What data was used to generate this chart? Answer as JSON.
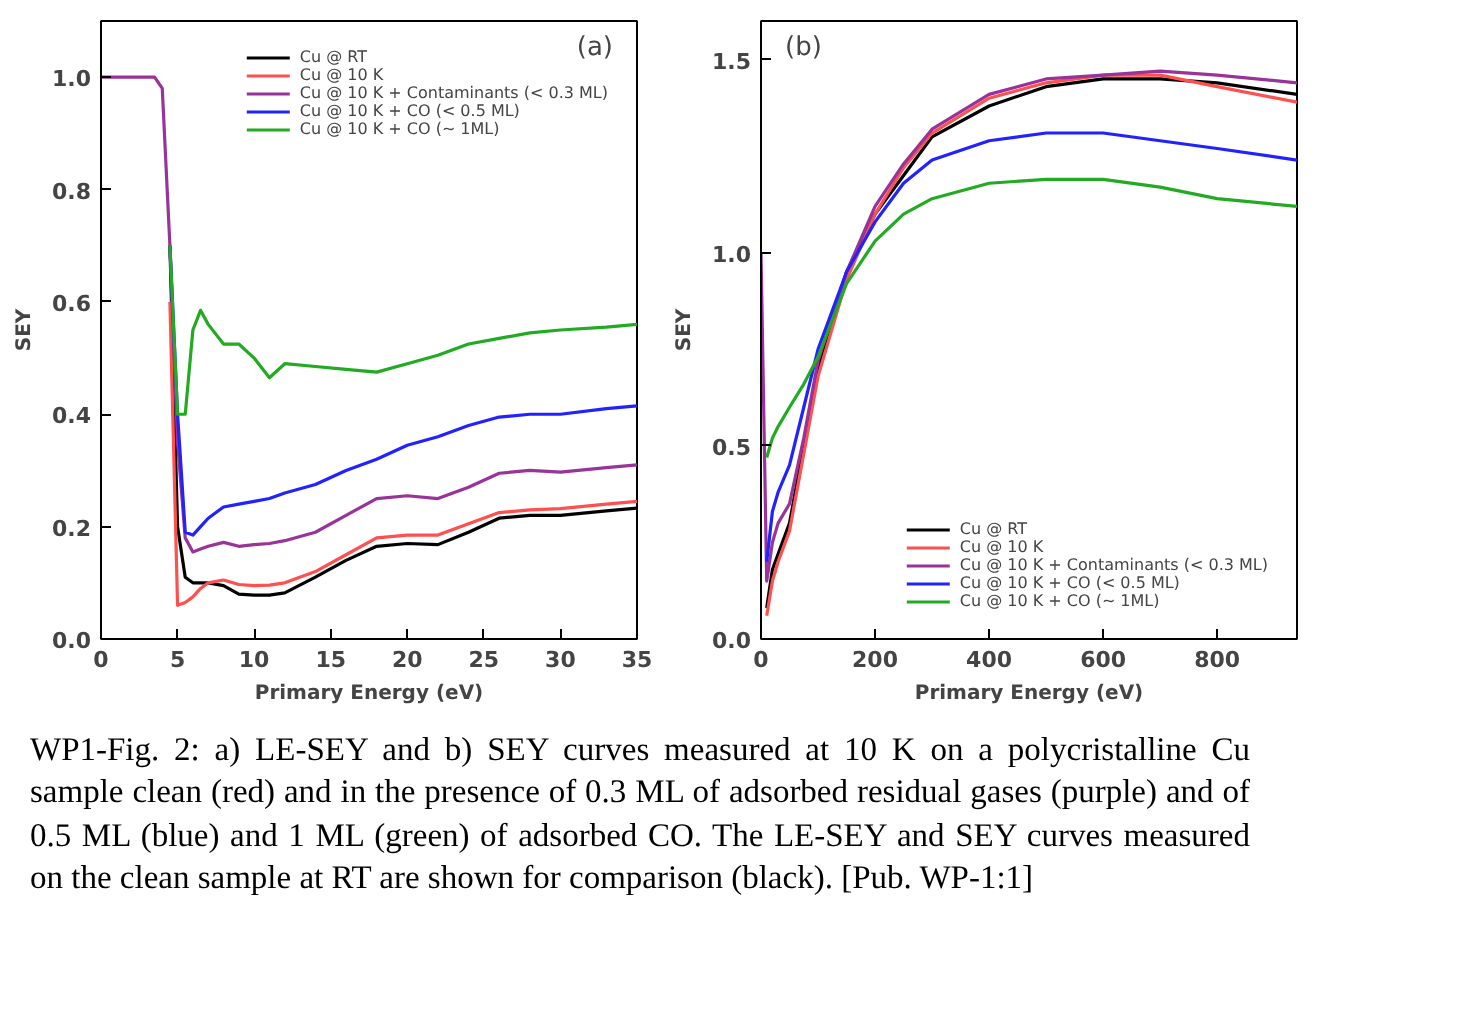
{
  "chart_data": [
    {
      "type": "line",
      "title": "(a)",
      "xlabel": "Primary Energy (eV)",
      "ylabel": "SEY",
      "xlim": [
        0,
        35
      ],
      "ylim": [
        0,
        1.1
      ],
      "xticks": [
        0,
        5,
        10,
        15,
        20,
        25,
        30,
        35
      ],
      "yticks": [
        {
          "value": 0,
          "label": "0.0"
        },
        {
          "value": 0.2,
          "label": "0.2"
        },
        {
          "value": 0.4,
          "label": "0.4"
        },
        {
          "value": 0.6,
          "label": "0.6"
        },
        {
          "value": 0.8,
          "label": "0.8"
        },
        {
          "value": 1,
          "label": "1.0"
        }
      ],
      "grid": false,
      "legend": "top right",
      "x": [
        0,
        3.5,
        4,
        4.5,
        5,
        5.5,
        6,
        6.5,
        7,
        8,
        9,
        10,
        11,
        12,
        14,
        16,
        18,
        20,
        22,
        24,
        26,
        28,
        30,
        33,
        35
      ],
      "series": [
        {
          "name": "Cu @ RT",
          "color": "#000000",
          "values": [
            null,
            null,
            null,
            0.7,
            0.2,
            0.11,
            0.1,
            0.1,
            0.1,
            0.095,
            0.08,
            0.078,
            0.078,
            0.082,
            0.11,
            0.14,
            0.165,
            0.17,
            0.168,
            0.19,
            0.215,
            0.22,
            0.22,
            0.228,
            0.233
          ]
        },
        {
          "name": "Cu @ 10 K",
          "color": "#ff5050",
          "values": [
            null,
            null,
            null,
            0.6,
            0.06,
            0.065,
            0.075,
            0.09,
            0.1,
            0.105,
            0.097,
            0.095,
            0.096,
            0.1,
            0.12,
            0.15,
            0.18,
            0.185,
            0.185,
            0.205,
            0.225,
            0.23,
            0.232,
            0.24,
            0.245
          ]
        },
        {
          "name": "Cu @ 10 K + Contaminants (< 0.3 ML)",
          "color": "#993399",
          "values": [
            1,
            1,
            0.98,
            0.7,
            0.35,
            0.18,
            0.155,
            0.16,
            0.165,
            0.172,
            0.165,
            0.168,
            0.17,
            0.175,
            0.19,
            0.22,
            0.25,
            0.255,
            0.25,
            0.27,
            0.295,
            0.3,
            0.297,
            0.305,
            0.31
          ]
        },
        {
          "name": "Cu @ 10 K + CO (< 0.5 ML)",
          "color": "#2222ff",
          "values": [
            null,
            null,
            null,
            0.7,
            0.4,
            0.19,
            0.185,
            0.2,
            0.215,
            0.235,
            0.24,
            0.245,
            0.25,
            0.26,
            0.275,
            0.3,
            0.32,
            0.345,
            0.36,
            0.38,
            0.395,
            0.4,
            0.4,
            0.41,
            0.415
          ]
        },
        {
          "name": "Cu @ 10 K + CO (~ 1ML)",
          "color": "#22aa22",
          "values": [
            null,
            null,
            null,
            0.7,
            0.4,
            0.4,
            0.55,
            0.585,
            0.56,
            0.525,
            0.525,
            0.5,
            0.465,
            0.49,
            0.485,
            0.48,
            0.475,
            0.49,
            0.505,
            0.525,
            0.535,
            0.545,
            0.55,
            0.555,
            0.56
          ]
        }
      ],
      "annotations": [
        "WP1-Fig. 2: a) LE-SEY and b) SEY curves measured at 10 K on a polycristalline Cu sample clean (red) and in the presence of 0.3 ML of adsorbed residual gases (purple) and of 0.5 ML (blue) and 1 ML (green) of adsorbed CO. The LE-SEY and SEY curves measured on the clean sample at RT are shown for comparison (black). [Pub. WP-1:1]"
      ]
    },
    {
      "type": "line",
      "title": "(b)",
      "xlabel": "Primary Energy (eV)",
      "ylabel": "SEY",
      "xlim": [
        0,
        940
      ],
      "ylim": [
        0,
        1.6
      ],
      "xticks": [
        0,
        200,
        400,
        600,
        800
      ],
      "yticks": [
        {
          "value": 0,
          "label": "0.0"
        },
        {
          "value": 0.5,
          "label": "0.5"
        },
        {
          "value": 1,
          "label": "1.0"
        },
        {
          "value": 1.5,
          "label": "1.5"
        }
      ],
      "grid": false,
      "legend": "bottom right",
      "x": [
        0,
        10,
        20,
        30,
        50,
        75,
        100,
        150,
        200,
        250,
        300,
        400,
        500,
        600,
        700,
        800,
        940
      ],
      "series": [
        {
          "name": "Cu @ RT",
          "color": "#000000",
          "values": [
            null,
            0.08,
            0.18,
            0.22,
            0.3,
            0.5,
            0.7,
            0.95,
            1.1,
            1.2,
            1.3,
            1.38,
            1.43,
            1.45,
            1.45,
            1.44,
            1.41
          ]
        },
        {
          "name": "Cu @ 10 K",
          "color": "#ff5050",
          "values": [
            null,
            0.06,
            0.15,
            0.2,
            0.28,
            0.48,
            0.68,
            0.93,
            1.1,
            1.22,
            1.31,
            1.4,
            1.44,
            1.46,
            1.46,
            1.43,
            1.39
          ]
        },
        {
          "name": "Cu @ 10 K + Contaminants (< 0.3 ML)",
          "color": "#993399",
          "values": [
            1.0,
            0.15,
            0.25,
            0.3,
            0.35,
            0.52,
            0.72,
            0.95,
            1.12,
            1.23,
            1.32,
            1.41,
            1.45,
            1.46,
            1.47,
            1.46,
            1.44
          ]
        },
        {
          "name": "Cu @ 10 K + CO (< 0.5 ML)",
          "color": "#2222ff",
          "values": [
            null,
            0.2,
            0.33,
            0.38,
            0.45,
            0.6,
            0.75,
            0.95,
            1.08,
            1.18,
            1.24,
            1.29,
            1.31,
            1.31,
            1.29,
            1.27,
            1.24
          ]
        },
        {
          "name": "Cu @ 10 K + CO (~ 1ML)",
          "color": "#22aa22",
          "values": [
            null,
            0.47,
            0.52,
            0.55,
            0.6,
            0.66,
            0.73,
            0.92,
            1.03,
            1.1,
            1.14,
            1.18,
            1.19,
            1.19,
            1.17,
            1.14,
            1.12
          ]
        }
      ]
    }
  ]
}
